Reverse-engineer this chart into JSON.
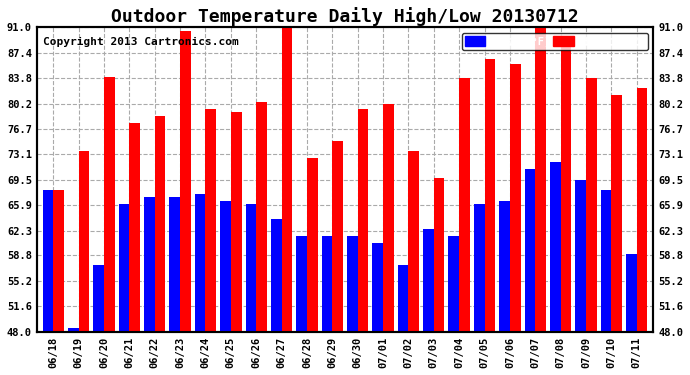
{
  "title": "Outdoor Temperature Daily High/Low 20130712",
  "copyright": "Copyright 2013 Cartronics.com",
  "dates": [
    "06/18",
    "06/19",
    "06/20",
    "06/21",
    "06/22",
    "06/23",
    "06/24",
    "06/25",
    "06/26",
    "06/27",
    "06/28",
    "06/29",
    "06/30",
    "07/01",
    "07/02",
    "07/03",
    "07/04",
    "07/05",
    "07/06",
    "07/07",
    "07/08",
    "07/09",
    "07/10",
    "07/11"
  ],
  "highs": [
    68.0,
    73.5,
    84.0,
    77.5,
    78.5,
    90.5,
    79.5,
    79.0,
    80.5,
    91.0,
    72.5,
    75.0,
    79.5,
    80.2,
    73.5,
    69.8,
    83.8,
    86.5,
    85.8,
    91.0,
    88.8,
    83.8,
    81.5,
    82.5
  ],
  "lows": [
    68.0,
    48.5,
    57.5,
    66.0,
    67.0,
    67.0,
    67.5,
    66.5,
    66.0,
    64.0,
    61.5,
    61.5,
    61.5,
    60.5,
    57.5,
    62.5,
    61.5,
    66.0,
    66.5,
    71.0,
    72.0,
    69.5,
    68.0,
    59.0
  ],
  "high_color": "#ff0000",
  "low_color": "#0000ff",
  "bg_color": "#ffffff",
  "plot_bg_color": "#ffffff",
  "grid_color": "#aaaaaa",
  "ylim_min": 48.0,
  "ylim_max": 91.0,
  "yticks": [
    48.0,
    51.6,
    55.2,
    58.8,
    62.3,
    65.9,
    69.5,
    73.1,
    76.7,
    80.2,
    83.8,
    87.4,
    91.0
  ],
  "title_fontsize": 13,
  "copyright_fontsize": 8,
  "bar_width": 0.42
}
